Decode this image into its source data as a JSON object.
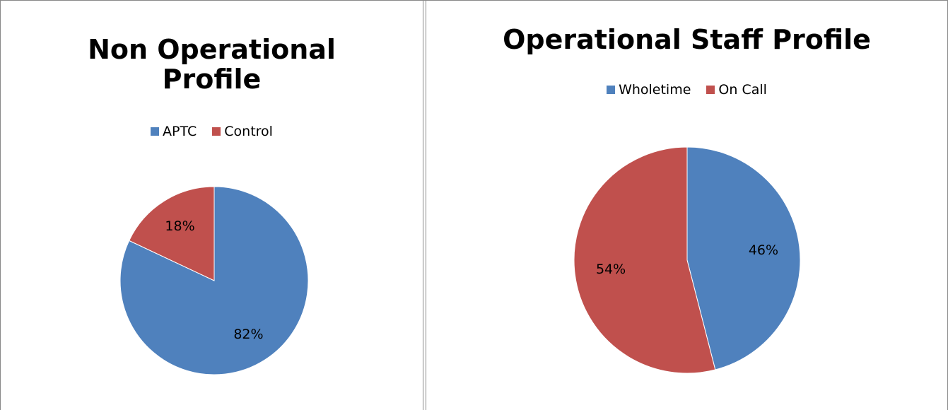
{
  "chart_data": [
    {
      "type": "pie",
      "title": "Non Operational Profile",
      "categories": [
        "APTC",
        "Control"
      ],
      "values": [
        82,
        18
      ],
      "value_labels": [
        "82%",
        "18%"
      ],
      "colors": [
        "#4f81bd",
        "#c0504d"
      ],
      "legend": "top"
    },
    {
      "type": "pie",
      "title": "Operational Staff Profile",
      "categories": [
        "Wholetime",
        "On Call"
      ],
      "values": [
        46,
        54
      ],
      "value_labels": [
        "46%",
        "54%"
      ],
      "colors": [
        "#4f81bd",
        "#c0504d"
      ],
      "legend": "top"
    }
  ]
}
